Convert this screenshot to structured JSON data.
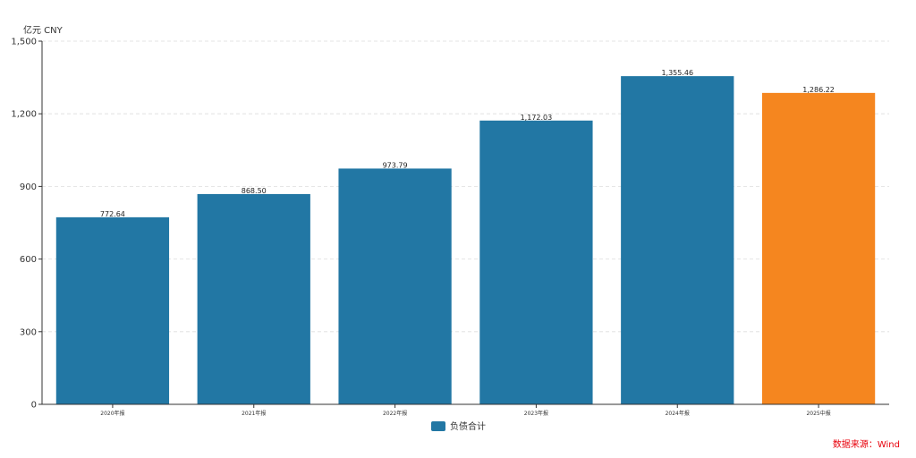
{
  "chart_data": {
    "type": "bar",
    "unit_label": "亿元  CNY",
    "categories": [
      "2020年报",
      "2021年报",
      "2022年报",
      "2023年报",
      "2024年报",
      "2025中报"
    ],
    "series": [
      {
        "name": "负债合计",
        "values": [
          772.64,
          868.5,
          973.79,
          1172.03,
          1355.46,
          1286.22
        ],
        "value_labels": [
          "772.64",
          "868.50",
          "973.79",
          "1,172.03",
          "1,355.46",
          "1,286.22"
        ]
      }
    ],
    "yticks": [
      0,
      300,
      600,
      900,
      1200,
      1500
    ],
    "ytick_labels": [
      "0",
      "300",
      "600",
      "900",
      "1,200",
      "1,500"
    ],
    "ylim": [
      0,
      1500
    ],
    "grid": true,
    "legend_position": "bottom-center",
    "colors": {
      "bar": "#2277a4",
      "highlight": "#f5861f",
      "highlight_category": "2025中报"
    }
  },
  "source": "数据来源：Wind"
}
